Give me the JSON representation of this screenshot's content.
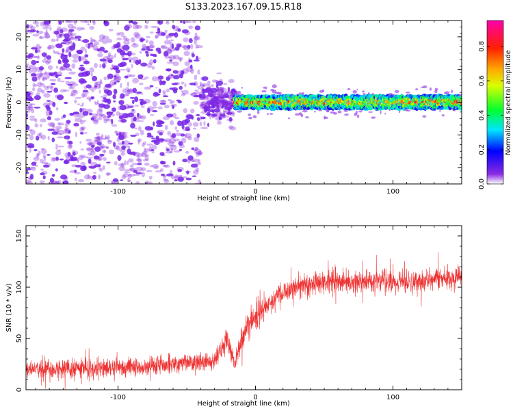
{
  "title": "S133.2023.167.09.15.R18",
  "colors": {
    "snr_line": "#ee3333",
    "frame": "#000000"
  },
  "chart_data": [
    {
      "type": "heatmap",
      "title": "S133.2023.167.09.15.R18",
      "xlabel": "Height of straight line (km)",
      "ylabel": "Frequency (Hz)",
      "xlim": [
        -167,
        150
      ],
      "ylim": [
        -25,
        25
      ],
      "xticks": [
        -100,
        0,
        100
      ],
      "xtick_labels": [
        "-100",
        "0",
        "100"
      ],
      "yticks": [
        -20,
        -10,
        0,
        10,
        20
      ],
      "ytick_labels": [
        "-20",
        "-10",
        "0",
        "10",
        "20"
      ],
      "grid": false,
      "colormap": "rainbow (violet→blue→cyan→green→yellow→red→magenta)",
      "colorbar": {
        "label": "Normalized spectral amplitude",
        "range": [
          0,
          0.95
        ],
        "ticks": [
          0.0,
          0.2,
          0.4,
          0.6,
          0.8
        ],
        "tick_labels": [
          "0.0",
          "0.2",
          "0.4",
          "0.6",
          "0.8"
        ],
        "placement": "right"
      },
      "regions": [
        {
          "x_range": [
            -167,
            -40
          ],
          "freq_range": [
            -25,
            25
          ],
          "amplitude": 0.05,
          "pattern": "scattered noise speckle"
        },
        {
          "x_range": [
            -40,
            -15
          ],
          "freq_range": [
            -8,
            8
          ],
          "amplitude": 0.2,
          "pattern": "transition clutter"
        },
        {
          "x_range": [
            -15,
            150
          ],
          "freq_range": [
            -2,
            2
          ],
          "amplitude": 0.9,
          "pattern": "narrow band centered at 0 Hz"
        }
      ]
    },
    {
      "type": "line",
      "xlabel": "Height of straight line (km)",
      "ylabel": "SNR (10 * v/v)",
      "xlim": [
        -167,
        150
      ],
      "ylim": [
        0,
        160
      ],
      "xticks": [
        -100,
        0,
        100
      ],
      "xtick_labels": [
        "-100",
        "0",
        "100"
      ],
      "yticks": [
        0,
        50,
        100,
        150
      ],
      "ytick_labels": [
        "0",
        "50",
        "100",
        "150"
      ],
      "grid": false,
      "series": [
        {
          "x": [
            -167,
            -150,
            -130,
            -110,
            -90,
            -70,
            -50,
            -40,
            -30,
            -25,
            -20,
            -15,
            -10,
            -5,
            0,
            10,
            20,
            30,
            50,
            70,
            90,
            110,
            130,
            150
          ],
          "values": [
            20,
            20,
            21,
            21,
            22,
            24,
            26,
            27,
            28,
            40,
            45,
            25,
            50,
            65,
            70,
            85,
            95,
            100,
            105,
            105,
            106,
            105,
            108,
            110
          ]
        }
      ]
    }
  ]
}
